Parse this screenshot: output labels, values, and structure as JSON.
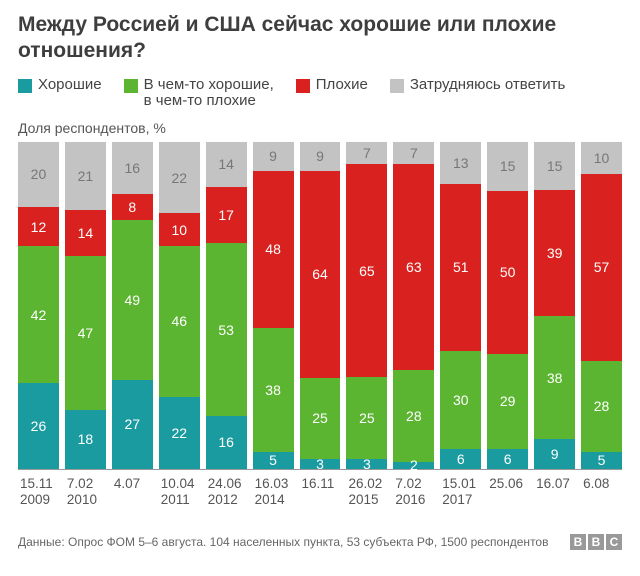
{
  "title": "Между Россией и США сейчас хорошие или плохие отношения?",
  "legend": [
    {
      "label": "Хорошие",
      "color": "#1a9ba0"
    },
    {
      "label": "В чем-то хорошие,\nв чем-то плохие",
      "color": "#5cb531"
    },
    {
      "label": "Плохие",
      "color": "#d9221f"
    },
    {
      "label": "Затрудняюсь ответить",
      "color": "#c3c3c3"
    }
  ],
  "ylabel": "Доля респондентов, %",
  "chart": {
    "type": "stacked-bar",
    "ylim": [
      0,
      100
    ],
    "bar_gap": 6,
    "background": "#ffffff",
    "value_label_color_inside": "#ffffff",
    "value_label_color_gray": "#777777",
    "value_label_fontsize": 14,
    "xlabel_fontsize": 13.5,
    "series_order": [
      "good",
      "mixed",
      "bad",
      "dk"
    ],
    "series_colors": {
      "good": "#1a9ba0",
      "mixed": "#5cb531",
      "bad": "#d9221f",
      "dk": "#c3c3c3"
    },
    "categories": [
      {
        "date1": "15.11",
        "date2": "2009",
        "good": 26,
        "mixed": 42,
        "bad": 12,
        "dk": 20
      },
      {
        "date1": "7.02",
        "date2": "2010",
        "good": 18,
        "mixed": 47,
        "bad": 14,
        "dk": 21
      },
      {
        "date1": "4.07",
        "date2": "",
        "good": 27,
        "mixed": 49,
        "bad": 8,
        "dk": 16
      },
      {
        "date1": "10.04",
        "date2": "2011",
        "good": 22,
        "mixed": 46,
        "bad": 10,
        "dk": 22
      },
      {
        "date1": "24.06",
        "date2": "2012",
        "good": 16,
        "mixed": 53,
        "bad": 17,
        "dk": 14
      },
      {
        "date1": "16.03",
        "date2": "2014",
        "good": 5,
        "mixed": 38,
        "bad": 48,
        "dk": 9
      },
      {
        "date1": "16.11",
        "date2": "",
        "good": 3,
        "mixed": 25,
        "bad": 64,
        "dk": 9
      },
      {
        "date1": "26.02",
        "date2": "2015",
        "good": 3,
        "mixed": 25,
        "bad": 65,
        "dk": 7
      },
      {
        "date1": "7.02",
        "date2": "2016",
        "good": 2,
        "mixed": 28,
        "bad": 63,
        "dk": 7
      },
      {
        "date1": "15.01",
        "date2": "2017",
        "good": 6,
        "mixed": 30,
        "bad": 51,
        "dk": 13
      },
      {
        "date1": "25.06",
        "date2": "",
        "good": 6,
        "mixed": 29,
        "bad": 50,
        "dk": 15
      },
      {
        "date1": "16.07",
        "date2": "",
        "good": 9,
        "mixed": 38,
        "bad": 39,
        "dk": 15
      },
      {
        "date1": "6.08",
        "date2": "",
        "good": 5,
        "mixed": 28,
        "bad": 57,
        "dk": 10
      }
    ]
  },
  "source": "Данные: Опрос ФОМ 5–6 августа. 104 населенных пункта, 53 субъекта РФ, 1500 респондентов",
  "logo": "BBC"
}
